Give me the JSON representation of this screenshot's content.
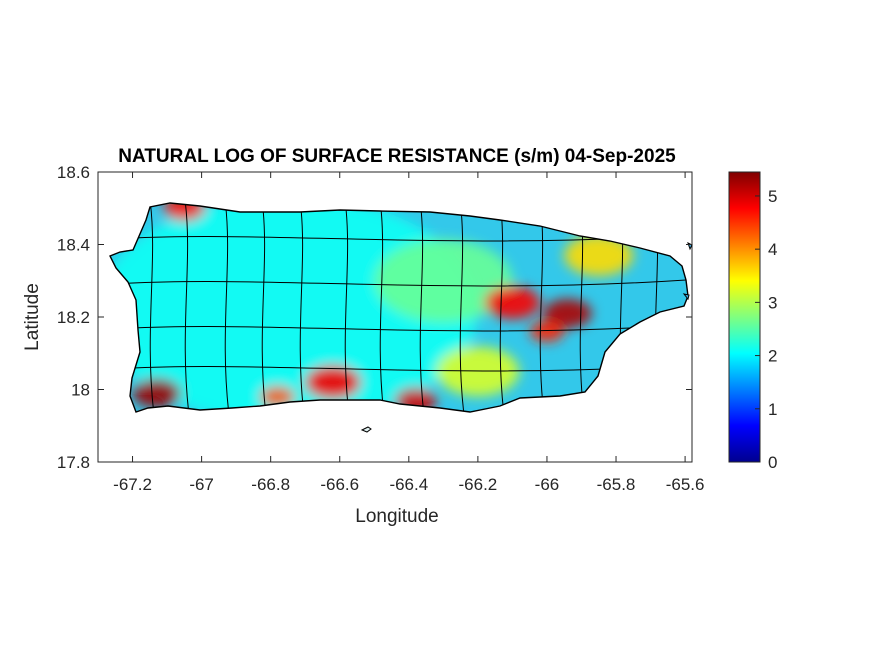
{
  "chart_data": {
    "type": "heatmap",
    "title": "NATURAL LOG OF SURFACE RESISTANCE (s/m) 04-Sep-2025",
    "xlabel": "Longitude",
    "ylabel": "Latitude",
    "xlim": [
      -67.3,
      -65.58
    ],
    "ylim": [
      17.8,
      18.6
    ],
    "xticks": [
      -67.2,
      -67,
      -66.8,
      -66.6,
      -66.4,
      -66.2,
      -66,
      -65.8,
      -65.6
    ],
    "xtick_labels": [
      "-67.2",
      "-67",
      "-66.8",
      "-66.6",
      "-66.4",
      "-66.2",
      "-66",
      "-65.8",
      "-65.6"
    ],
    "yticks": [
      17.8,
      18,
      18.2,
      18.4,
      18.6
    ],
    "ytick_labels": [
      "17.8",
      "18",
      "18.2",
      "18.4",
      "18.6"
    ],
    "colorbar": {
      "colormap": "jet",
      "range": [
        0,
        5.45
      ],
      "ticks": [
        0,
        1,
        2,
        3,
        4,
        5
      ],
      "tick_labels": [
        "0",
        "1",
        "2",
        "3",
        "4",
        "5"
      ]
    },
    "grid": false,
    "value_regions": [
      {
        "description_value": 2.1,
        "lon": -66.75,
        "lat": 18.22,
        "radius_deg": 0.55
      },
      {
        "description_value": 2.6,
        "lon": -66.3,
        "lat": 18.3,
        "radius_deg": 0.2
      },
      {
        "description_value": 4.8,
        "lon": -66.1,
        "lat": 18.24,
        "radius_deg": 0.08
      },
      {
        "description_value": 5.2,
        "lon": -65.94,
        "lat": 18.21,
        "radius_deg": 0.07
      },
      {
        "description_value": 4.6,
        "lon": -66.0,
        "lat": 18.16,
        "radius_deg": 0.05
      },
      {
        "description_value": 5.3,
        "lon": -67.13,
        "lat": 17.99,
        "radius_deg": 0.07
      },
      {
        "description_value": 4.8,
        "lon": -66.62,
        "lat": 18.02,
        "radius_deg": 0.08
      },
      {
        "description_value": 5.0,
        "lon": -66.38,
        "lat": 17.97,
        "radius_deg": 0.06
      },
      {
        "description_value": 4.3,
        "lon": -66.78,
        "lat": 17.98,
        "radius_deg": 0.05
      },
      {
        "description_value": 4.7,
        "lon": -67.05,
        "lat": 18.5,
        "radius_deg": 0.06
      },
      {
        "description_value": 3.6,
        "lon": -65.85,
        "lat": 18.37,
        "radius_deg": 0.1
      },
      {
        "description_value": 3.2,
        "lon": -66.2,
        "lat": 18.05,
        "radius_deg": 0.12
      }
    ]
  }
}
